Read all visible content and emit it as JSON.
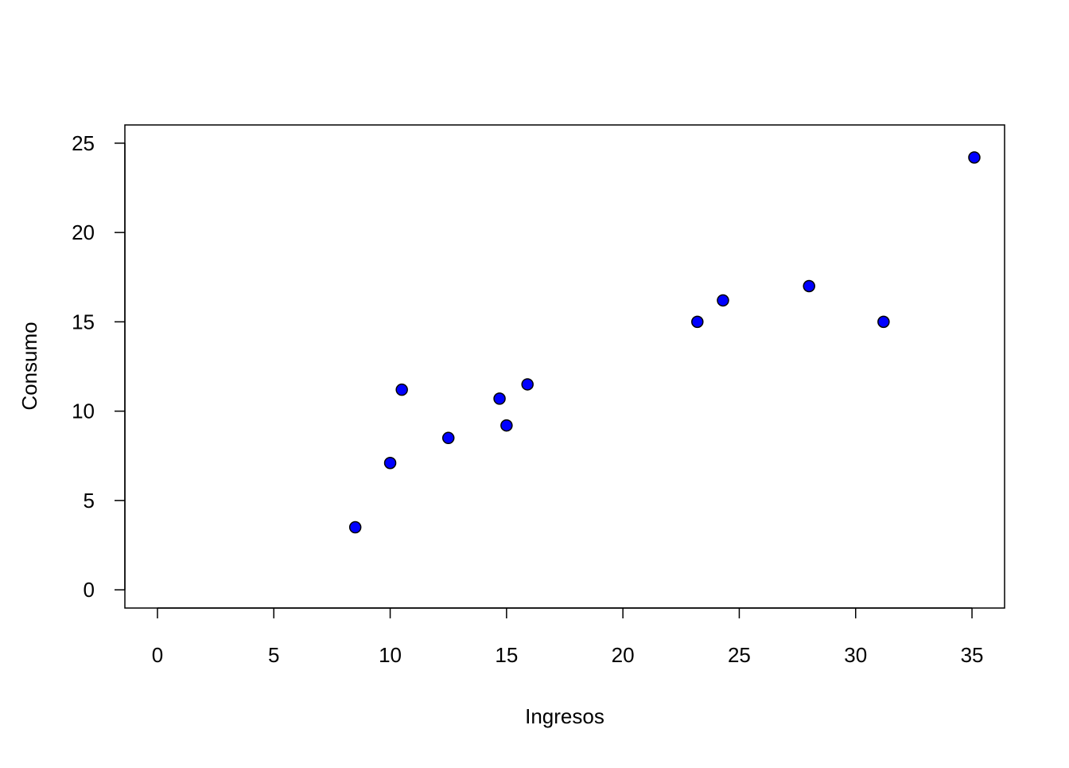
{
  "chart_data": {
    "type": "scatter",
    "x_label": "Ingresos",
    "y_label": "Consumo",
    "x": [
      8.5,
      10,
      10.5,
      12.5,
      14.7,
      15,
      15.9,
      23.2,
      24.3,
      28,
      31.2,
      35.1
    ],
    "values": [
      3.5,
      7.1,
      11.2,
      8.5,
      10.7,
      9.2,
      11.5,
      15,
      16.2,
      17,
      15,
      24.2
    ],
    "color": "#0000ff",
    "xlim": [
      -1.4,
      36.4
    ],
    "ylim": [
      -1.02,
      26.02
    ],
    "xticks": [
      0,
      5,
      10,
      15,
      20,
      25,
      30,
      35
    ],
    "yticks": [
      0,
      5,
      10,
      15,
      20,
      25
    ],
    "grid": false
  }
}
